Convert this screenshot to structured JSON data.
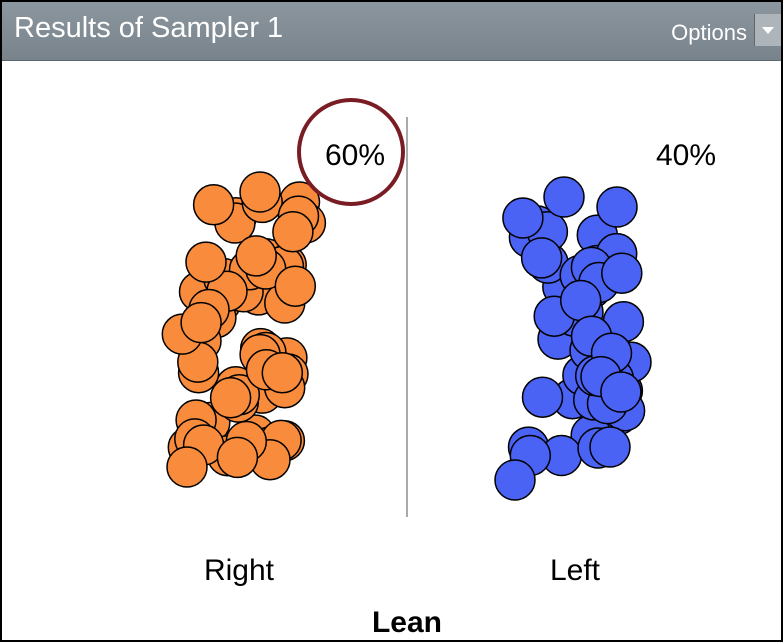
{
  "header": {
    "title": "Results of Sampler 1",
    "menu": "Options"
  },
  "plot": {
    "axis_label": "Lean",
    "groups": [
      {
        "label": "Right",
        "percent": "60%"
      },
      {
        "label": "Left",
        "percent": "40%"
      }
    ]
  }
}
